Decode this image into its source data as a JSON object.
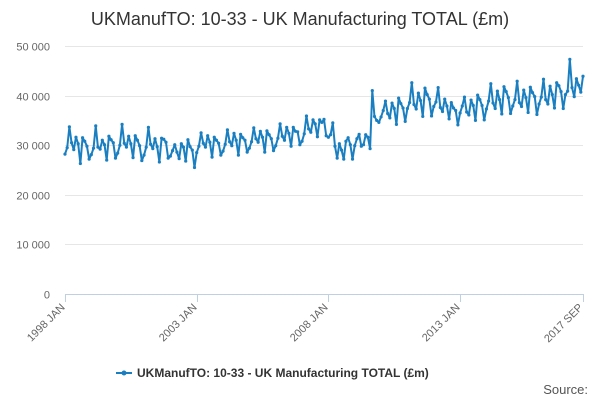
{
  "chart_data": {
    "type": "line",
    "title": "UKManufTO: 10-33 - UK Manufacturing TOTAL (£m)",
    "xlabel": "",
    "ylabel": "",
    "ylim": [
      0,
      50000
    ],
    "yticks": [
      "0",
      "10 000",
      "20 000",
      "30 000",
      "40 000",
      "50 000"
    ],
    "ytick_values": [
      0,
      10000,
      20000,
      30000,
      40000,
      50000
    ],
    "xticks": [
      "1998 JAN",
      "2003 JAN",
      "2008 JAN",
      "2013 JAN",
      "2017 SEP"
    ],
    "xtick_index": [
      0,
      60,
      120,
      180,
      236
    ],
    "legend": "UKManufTO: 10-33 - UK Manufacturing TOTAL (£m)",
    "legend_position": "bottom-center",
    "credit": "Source:",
    "color": "#1a7fc1",
    "grid": true,
    "series": [
      {
        "name": "UKManufTO: 10-33 - UK Manufacturing TOTAL (£m)",
        "start": "1998 JAN",
        "end": "2017 SEP",
        "values": [
          28200,
          29500,
          33700,
          30500,
          29100,
          31600,
          30300,
          26300,
          31500,
          30800,
          29800,
          27200,
          28100,
          29400,
          33900,
          29600,
          29200,
          31000,
          30100,
          27000,
          31800,
          31100,
          30500,
          27400,
          28400,
          30000,
          34200,
          30400,
          29600,
          31800,
          30300,
          27500,
          31900,
          31000,
          29900,
          26900,
          28000,
          29600,
          33600,
          30200,
          29300,
          31300,
          29700,
          26600,
          31400,
          31200,
          30600,
          27400,
          27800,
          28900,
          30100,
          28600,
          27300,
          30300,
          29600,
          26800,
          31100,
          29700,
          29000,
          25500,
          28500,
          29800,
          32500,
          30400,
          29600,
          31900,
          30600,
          27600,
          31600,
          31000,
          30400,
          28000,
          28800,
          30200,
          33100,
          30700,
          29900,
          32400,
          31000,
          28000,
          32200,
          31500,
          31000,
          28600,
          29400,
          30700,
          33500,
          31300,
          30600,
          32800,
          31600,
          28600,
          32900,
          32100,
          31300,
          28900,
          29900,
          31400,
          34300,
          31800,
          31000,
          33600,
          32400,
          29800,
          33600,
          32800,
          32700,
          30100,
          30800,
          32300,
          35900,
          33300,
          32600,
          35100,
          34300,
          31700,
          35100,
          34600,
          35200,
          31900,
          31600,
          32100,
          34500,
          29800,
          27400,
          30300,
          29000,
          27200,
          30800,
          31500,
          30100,
          27200,
          29900,
          31300,
          32200,
          29800,
          30100,
          32100,
          31600,
          29300,
          41000,
          35800,
          35000,
          34600,
          35700,
          37000,
          38900,
          36400,
          35500,
          38500,
          37400,
          34200,
          39500,
          38400,
          37500,
          34800,
          37400,
          38600,
          42600,
          38200,
          37300,
          40500,
          39000,
          35800,
          41500,
          40200,
          39300,
          35900,
          37800,
          38700,
          41600,
          37600,
          36800,
          39300,
          37900,
          35300,
          38600,
          37500,
          37000,
          34100,
          36500,
          37900,
          39700,
          36700,
          36100,
          39100,
          38000,
          35000,
          40100,
          39200,
          38000,
          35100,
          37300,
          38900,
          42400,
          38500,
          37400,
          40900,
          39200,
          36300,
          41800,
          40800,
          39600,
          36400,
          37900,
          39200,
          42900,
          38600,
          37800,
          41100,
          39600,
          36600,
          41700,
          40600,
          39800,
          36200,
          38300,
          39700,
          43300,
          39200,
          38300,
          41900,
          40200,
          37500,
          42600,
          42000,
          40800,
          37400,
          40200,
          40900,
          47300,
          41600,
          39800,
          43400,
          42100,
          40700,
          43900
        ]
      }
    ]
  }
}
